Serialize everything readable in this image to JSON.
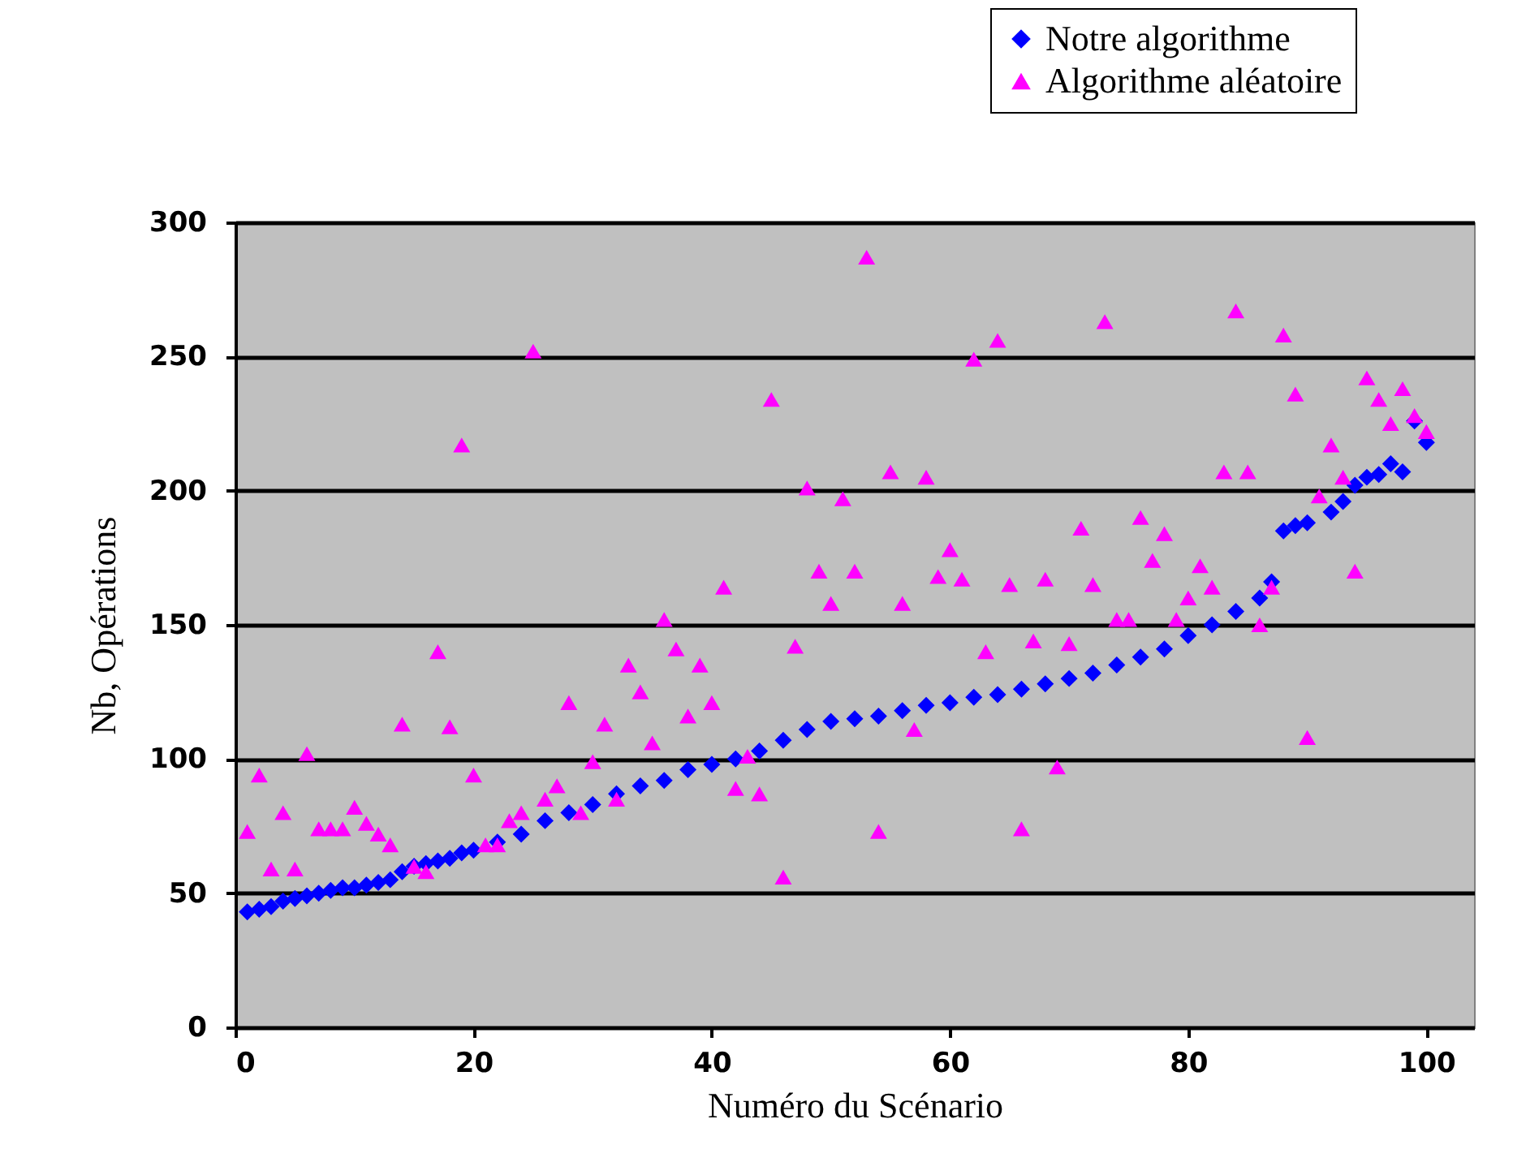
{
  "chart_data": {
    "type": "scatter",
    "xlabel": "Numéro du Scénario",
    "ylabel": "Nb, Opérations",
    "xlim": [
      0,
      104
    ],
    "xticks": [
      0,
      20,
      40,
      60,
      80,
      100
    ],
    "ylim": [
      0,
      300
    ],
    "yticks": [
      0,
      50,
      100,
      150,
      200,
      250,
      300
    ],
    "grid": "y",
    "legend": "top right",
    "series": [
      {
        "name": "Notre algorithme",
        "color": "#0000ff",
        "marker": "diamond",
        "x": [
          1,
          2,
          3,
          4,
          5,
          6,
          7,
          8,
          9,
          10,
          11,
          12,
          13,
          14,
          15,
          16,
          17,
          18,
          19,
          20,
          22,
          24,
          26,
          28,
          30,
          32,
          34,
          36,
          38,
          40,
          42,
          44,
          46,
          48,
          50,
          52,
          54,
          56,
          58,
          60,
          62,
          64,
          66,
          68,
          70,
          72,
          74,
          76,
          78,
          80,
          82,
          84,
          86,
          87,
          88,
          89,
          90,
          92,
          93,
          94,
          95,
          96,
          97,
          98,
          99,
          100
        ],
        "values": [
          43,
          44,
          45,
          47,
          48,
          49,
          50,
          51,
          52,
          52,
          53,
          54,
          55,
          58,
          60,
          61,
          62,
          63,
          65,
          66,
          69,
          72,
          77,
          80,
          83,
          87,
          90,
          92,
          96,
          98,
          100,
          103,
          107,
          111,
          114,
          115,
          116,
          118,
          120,
          121,
          123,
          124,
          126,
          128,
          130,
          132,
          135,
          138,
          141,
          146,
          150,
          155,
          160,
          166,
          185,
          187,
          188,
          192,
          196,
          202,
          205,
          206,
          210,
          207,
          226,
          218
        ]
      },
      {
        "name": "Algorithme aléatoire",
        "color": "#ff00ff",
        "marker": "triangle",
        "x": [
          1,
          2,
          3,
          4,
          5,
          6,
          7,
          8,
          9,
          10,
          11,
          12,
          13,
          14,
          15,
          16,
          17,
          18,
          19,
          20,
          21,
          22,
          23,
          24,
          25,
          26,
          27,
          28,
          29,
          30,
          31,
          32,
          33,
          34,
          35,
          36,
          37,
          38,
          39,
          40,
          41,
          42,
          43,
          44,
          45,
          46,
          47,
          48,
          49,
          50,
          51,
          52,
          53,
          54,
          55,
          56,
          57,
          58,
          59,
          60,
          61,
          62,
          63,
          64,
          65,
          66,
          67,
          68,
          69,
          70,
          71,
          72,
          73,
          74,
          75,
          76,
          77,
          78,
          79,
          80,
          81,
          82,
          83,
          84,
          85,
          86,
          87,
          88,
          89,
          90,
          91,
          92,
          93,
          94,
          95,
          96,
          97,
          98,
          99,
          100
        ],
        "values": [
          73,
          94,
          59,
          80,
          59,
          102,
          74,
          74,
          74,
          82,
          76,
          72,
          68,
          113,
          60,
          58,
          140,
          112,
          217,
          94,
          68,
          68,
          77,
          80,
          252,
          85,
          90,
          121,
          80,
          99,
          113,
          85,
          135,
          125,
          106,
          152,
          141,
          116,
          135,
          121,
          164,
          89,
          101,
          87,
          234,
          56,
          142,
          201,
          170,
          158,
          197,
          170,
          287,
          73,
          207,
          158,
          111,
          205,
          168,
          178,
          167,
          249,
          140,
          256,
          165,
          74,
          144,
          167,
          97,
          143,
          186,
          165,
          263,
          152,
          152,
          190,
          174,
          184,
          152,
          160,
          172,
          164,
          207,
          267,
          207,
          150,
          164,
          258,
          236,
          108,
          198,
          217,
          205,
          170,
          242,
          234,
          225,
          238,
          228,
          222
        ]
      }
    ]
  }
}
